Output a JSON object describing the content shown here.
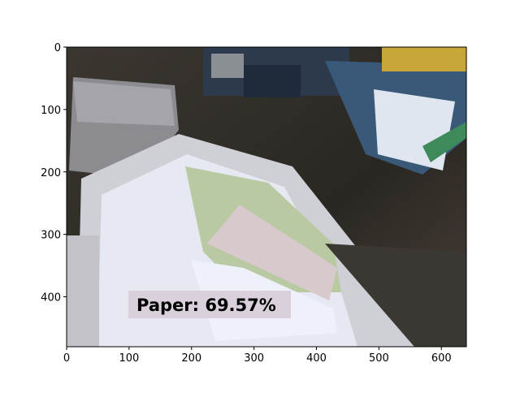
{
  "axes": {
    "xlim": [
      0,
      640
    ],
    "ylim": [
      480,
      0
    ],
    "xticks": [
      0,
      100,
      200,
      300,
      400,
      500,
      600
    ],
    "yticks": [
      0,
      100,
      200,
      300,
      400
    ]
  },
  "detection": {
    "label": "Paper: 69.57%"
  }
}
